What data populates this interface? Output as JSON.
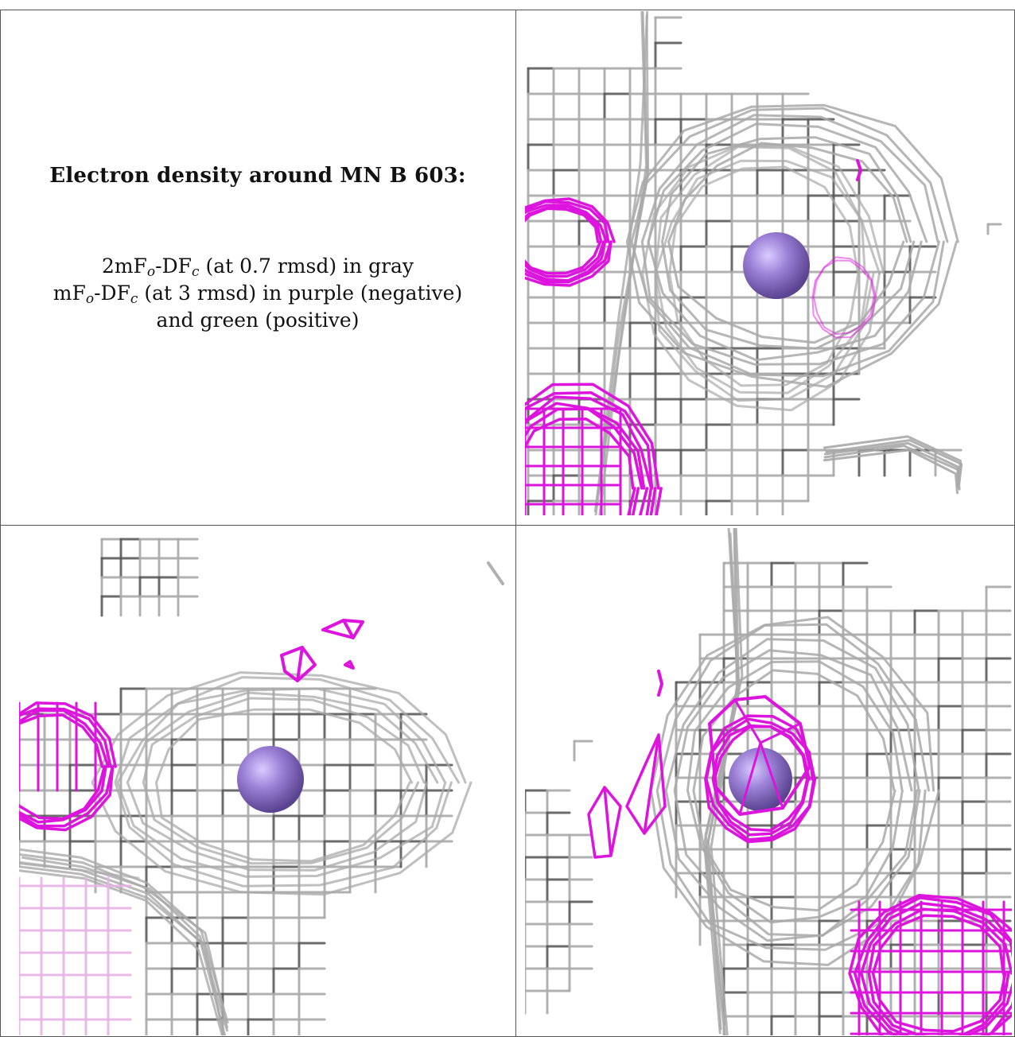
{
  "caption": {
    "title": "Electron density around MN B 603:",
    "line1": {
      "a": "2mF",
      "s1": "o",
      "b": "-DF",
      "s2": "c",
      "c": " (at 0.7 rmsd) in gray"
    },
    "line2": {
      "a": "mF",
      "s1": "o",
      "b": "-DF",
      "s2": "c",
      "c": " (at 3 rmsd) in purple (negative)"
    },
    "line3": "and green (positive)"
  },
  "colors": {
    "gray_mesh": "#a9a9a9",
    "dark_mesh": "#5c5c5c",
    "purple_mesh": "#dd14dd",
    "atom": "#9b80d6",
    "border": "#555555"
  },
  "panels": [
    {
      "name": "top-right-view",
      "atom": "MN"
    },
    {
      "name": "bottom-left-view",
      "atom": "MN"
    },
    {
      "name": "bottom-right-view",
      "atom": "MN"
    }
  ]
}
